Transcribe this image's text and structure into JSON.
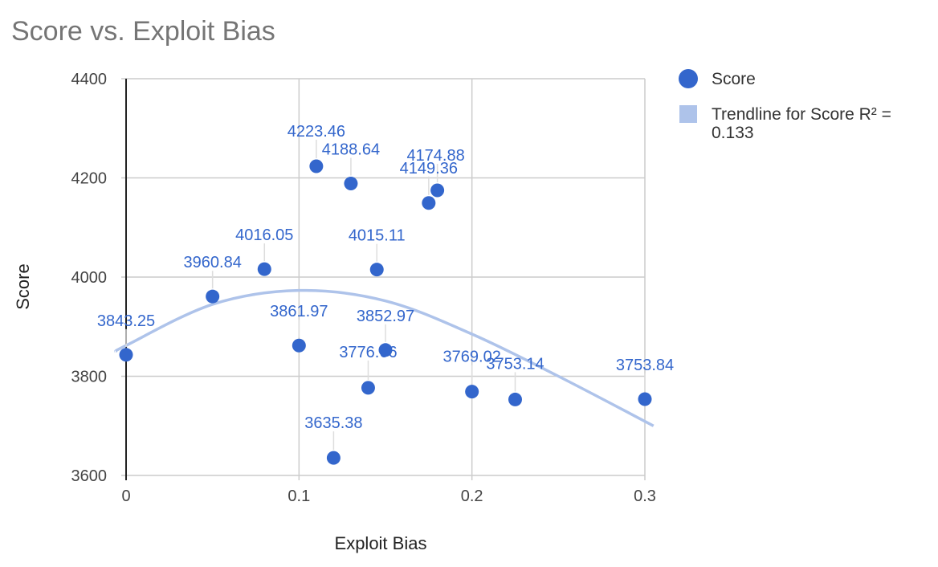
{
  "chart_data": {
    "type": "scatter",
    "title": "Score vs. Exploit Bias",
    "xlabel": "Exploit Bias",
    "ylabel": "Score",
    "xlim": [
      0,
      0.3
    ],
    "ylim": [
      3600,
      4400
    ],
    "x_ticks": [
      "0",
      "0.1",
      "0.2",
      "0.3"
    ],
    "y_ticks": [
      "3600",
      "3800",
      "4000",
      "4200",
      "4400"
    ],
    "grid": true,
    "legend_position": "right",
    "series": [
      {
        "name": "Score",
        "color": "#3366cc",
        "points": [
          {
            "x": 0.0,
            "y": 3843.25,
            "label": "3843.25"
          },
          {
            "x": 0.05,
            "y": 3960.84,
            "label": "3960.84"
          },
          {
            "x": 0.08,
            "y": 4016.05,
            "label": "4016.05"
          },
          {
            "x": 0.1,
            "y": 3861.97,
            "label": "3861.97"
          },
          {
            "x": 0.11,
            "y": 4223.46,
            "label": "4223.46"
          },
          {
            "x": 0.12,
            "y": 3635.38,
            "label": "3635.38"
          },
          {
            "x": 0.13,
            "y": 4188.64,
            "label": "4188.64"
          },
          {
            "x": 0.14,
            "y": 3776.66,
            "label": "3776.66"
          },
          {
            "x": 0.145,
            "y": 4015.11,
            "label": "4015.11"
          },
          {
            "x": 0.15,
            "y": 3852.97,
            "label": "3852.97"
          },
          {
            "x": 0.175,
            "y": 4149.36,
            "label": "4149.36"
          },
          {
            "x": 0.18,
            "y": 4174.88,
            "label": "4174.88"
          },
          {
            "x": 0.2,
            "y": 3769.02,
            "label": "3769.02"
          },
          {
            "x": 0.225,
            "y": 3753.14,
            "label": "3753.14"
          },
          {
            "x": 0.3,
            "y": 3753.84,
            "label": "3753.84"
          }
        ]
      }
    ],
    "trendline": {
      "name": "Trendline for Score R² = 0.133",
      "color": "#aec3ea",
      "type": "polynomial",
      "points": [
        {
          "x": -0.006,
          "y": 3850
        },
        {
          "x": 0.0,
          "y": 3862
        },
        {
          "x": 0.05,
          "y": 3945
        },
        {
          "x": 0.1,
          "y": 3973
        },
        {
          "x": 0.15,
          "y": 3952
        },
        {
          "x": 0.2,
          "y": 3885
        },
        {
          "x": 0.25,
          "y": 3800
        },
        {
          "x": 0.305,
          "y": 3700
        }
      ]
    }
  },
  "legend": {
    "series_label": "Score",
    "trend_label_line1": "Trendline for Score R² =",
    "trend_label_line2": "0.133"
  }
}
